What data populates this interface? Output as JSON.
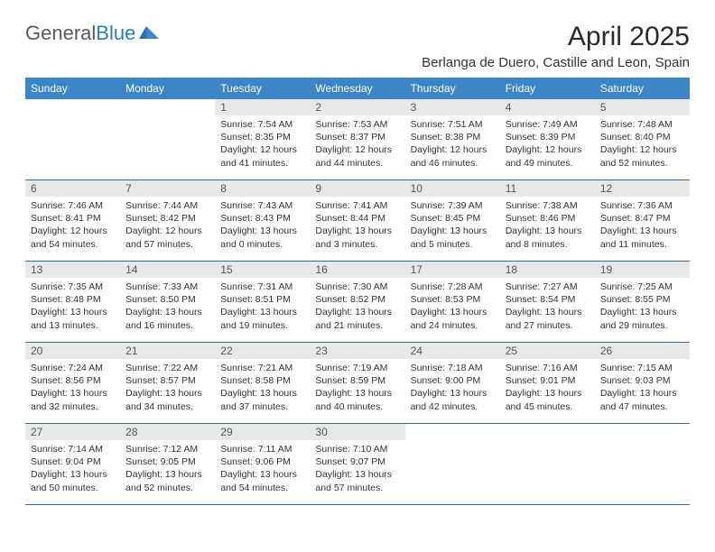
{
  "logo": {
    "part1": "General",
    "part2": "Blue"
  },
  "title": "April 2025",
  "location": "Berlanga de Duero, Castille and Leon, Spain",
  "header_bg": "#3c85c6",
  "days_header": [
    "Sunday",
    "Monday",
    "Tuesday",
    "Wednesday",
    "Thursday",
    "Friday",
    "Saturday"
  ],
  "weeks": [
    {
      "nums": [
        "",
        "",
        "1",
        "2",
        "3",
        "4",
        "5"
      ],
      "cells": [
        null,
        null,
        {
          "sunrise": "Sunrise: 7:54 AM",
          "sunset": "Sunset: 8:35 PM",
          "day1": "Daylight: 12 hours",
          "day2": "and 41 minutes."
        },
        {
          "sunrise": "Sunrise: 7:53 AM",
          "sunset": "Sunset: 8:37 PM",
          "day1": "Daylight: 12 hours",
          "day2": "and 44 minutes."
        },
        {
          "sunrise": "Sunrise: 7:51 AM",
          "sunset": "Sunset: 8:38 PM",
          "day1": "Daylight: 12 hours",
          "day2": "and 46 minutes."
        },
        {
          "sunrise": "Sunrise: 7:49 AM",
          "sunset": "Sunset: 8:39 PM",
          "day1": "Daylight: 12 hours",
          "day2": "and 49 minutes."
        },
        {
          "sunrise": "Sunrise: 7:48 AM",
          "sunset": "Sunset: 8:40 PM",
          "day1": "Daylight: 12 hours",
          "day2": "and 52 minutes."
        }
      ]
    },
    {
      "nums": [
        "6",
        "7",
        "8",
        "9",
        "10",
        "11",
        "12"
      ],
      "cells": [
        {
          "sunrise": "Sunrise: 7:46 AM",
          "sunset": "Sunset: 8:41 PM",
          "day1": "Daylight: 12 hours",
          "day2": "and 54 minutes."
        },
        {
          "sunrise": "Sunrise: 7:44 AM",
          "sunset": "Sunset: 8:42 PM",
          "day1": "Daylight: 12 hours",
          "day2": "and 57 minutes."
        },
        {
          "sunrise": "Sunrise: 7:43 AM",
          "sunset": "Sunset: 8:43 PM",
          "day1": "Daylight: 13 hours",
          "day2": "and 0 minutes."
        },
        {
          "sunrise": "Sunrise: 7:41 AM",
          "sunset": "Sunset: 8:44 PM",
          "day1": "Daylight: 13 hours",
          "day2": "and 3 minutes."
        },
        {
          "sunrise": "Sunrise: 7:39 AM",
          "sunset": "Sunset: 8:45 PM",
          "day1": "Daylight: 13 hours",
          "day2": "and 5 minutes."
        },
        {
          "sunrise": "Sunrise: 7:38 AM",
          "sunset": "Sunset: 8:46 PM",
          "day1": "Daylight: 13 hours",
          "day2": "and 8 minutes."
        },
        {
          "sunrise": "Sunrise: 7:36 AM",
          "sunset": "Sunset: 8:47 PM",
          "day1": "Daylight: 13 hours",
          "day2": "and 11 minutes."
        }
      ]
    },
    {
      "nums": [
        "13",
        "14",
        "15",
        "16",
        "17",
        "18",
        "19"
      ],
      "cells": [
        {
          "sunrise": "Sunrise: 7:35 AM",
          "sunset": "Sunset: 8:48 PM",
          "day1": "Daylight: 13 hours",
          "day2": "and 13 minutes."
        },
        {
          "sunrise": "Sunrise: 7:33 AM",
          "sunset": "Sunset: 8:50 PM",
          "day1": "Daylight: 13 hours",
          "day2": "and 16 minutes."
        },
        {
          "sunrise": "Sunrise: 7:31 AM",
          "sunset": "Sunset: 8:51 PM",
          "day1": "Daylight: 13 hours",
          "day2": "and 19 minutes."
        },
        {
          "sunrise": "Sunrise: 7:30 AM",
          "sunset": "Sunset: 8:52 PM",
          "day1": "Daylight: 13 hours",
          "day2": "and 21 minutes."
        },
        {
          "sunrise": "Sunrise: 7:28 AM",
          "sunset": "Sunset: 8:53 PM",
          "day1": "Daylight: 13 hours",
          "day2": "and 24 minutes."
        },
        {
          "sunrise": "Sunrise: 7:27 AM",
          "sunset": "Sunset: 8:54 PM",
          "day1": "Daylight: 13 hours",
          "day2": "and 27 minutes."
        },
        {
          "sunrise": "Sunrise: 7:25 AM",
          "sunset": "Sunset: 8:55 PM",
          "day1": "Daylight: 13 hours",
          "day2": "and 29 minutes."
        }
      ]
    },
    {
      "nums": [
        "20",
        "21",
        "22",
        "23",
        "24",
        "25",
        "26"
      ],
      "cells": [
        {
          "sunrise": "Sunrise: 7:24 AM",
          "sunset": "Sunset: 8:56 PM",
          "day1": "Daylight: 13 hours",
          "day2": "and 32 minutes."
        },
        {
          "sunrise": "Sunrise: 7:22 AM",
          "sunset": "Sunset: 8:57 PM",
          "day1": "Daylight: 13 hours",
          "day2": "and 34 minutes."
        },
        {
          "sunrise": "Sunrise: 7:21 AM",
          "sunset": "Sunset: 8:58 PM",
          "day1": "Daylight: 13 hours",
          "day2": "and 37 minutes."
        },
        {
          "sunrise": "Sunrise: 7:19 AM",
          "sunset": "Sunset: 8:59 PM",
          "day1": "Daylight: 13 hours",
          "day2": "and 40 minutes."
        },
        {
          "sunrise": "Sunrise: 7:18 AM",
          "sunset": "Sunset: 9:00 PM",
          "day1": "Daylight: 13 hours",
          "day2": "and 42 minutes."
        },
        {
          "sunrise": "Sunrise: 7:16 AM",
          "sunset": "Sunset: 9:01 PM",
          "day1": "Daylight: 13 hours",
          "day2": "and 45 minutes."
        },
        {
          "sunrise": "Sunrise: 7:15 AM",
          "sunset": "Sunset: 9:03 PM",
          "day1": "Daylight: 13 hours",
          "day2": "and 47 minutes."
        }
      ]
    },
    {
      "nums": [
        "27",
        "28",
        "29",
        "30",
        "",
        "",
        ""
      ],
      "cells": [
        {
          "sunrise": "Sunrise: 7:14 AM",
          "sunset": "Sunset: 9:04 PM",
          "day1": "Daylight: 13 hours",
          "day2": "and 50 minutes."
        },
        {
          "sunrise": "Sunrise: 7:12 AM",
          "sunset": "Sunset: 9:05 PM",
          "day1": "Daylight: 13 hours",
          "day2": "and 52 minutes."
        },
        {
          "sunrise": "Sunrise: 7:11 AM",
          "sunset": "Sunset: 9:06 PM",
          "day1": "Daylight: 13 hours",
          "day2": "and 54 minutes."
        },
        {
          "sunrise": "Sunrise: 7:10 AM",
          "sunset": "Sunset: 9:07 PM",
          "day1": "Daylight: 13 hours",
          "day2": "and 57 minutes."
        },
        null,
        null,
        null
      ]
    }
  ]
}
